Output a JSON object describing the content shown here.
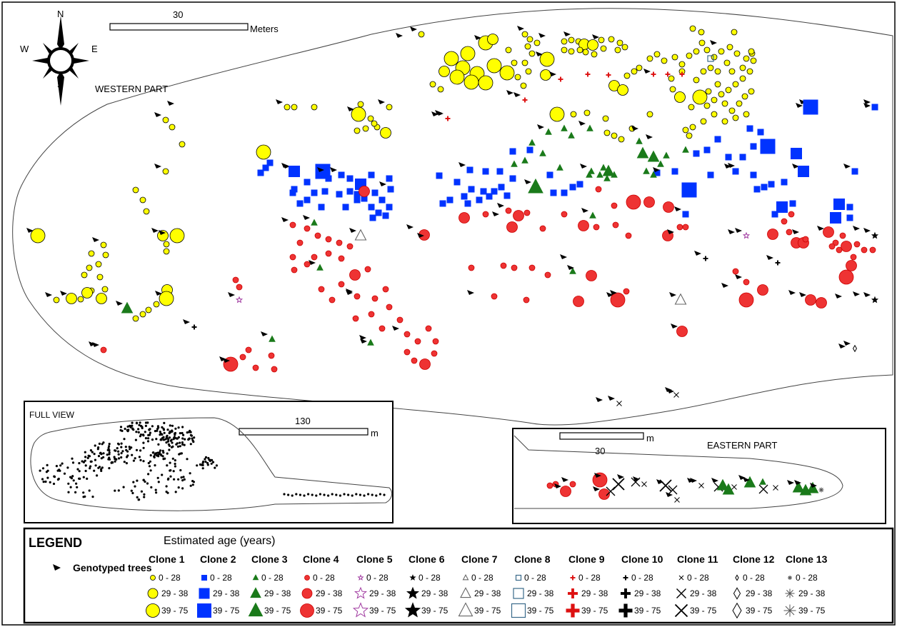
{
  "compass": {
    "n": "N",
    "s": "S",
    "e": "E",
    "w": "W"
  },
  "main_map": {
    "scale_value": "30",
    "scale_unit": "Meters",
    "part_label": "WESTERN PART"
  },
  "full_view": {
    "title": "FULL VIEW",
    "scale_value": "130",
    "scale_unit": "m"
  },
  "eastern_part": {
    "title": "EASTERN PART",
    "scale_value": "30",
    "scale_unit": "m"
  },
  "legend": {
    "title": "LEGEND",
    "subtitle": "Estimated age (years)",
    "genotyped_label": "Genotyped trees",
    "age_classes": [
      "0 - 28",
      "29 - 38",
      "39 - 75"
    ],
    "clones": [
      {
        "name": "Clone 1",
        "symbol": "circle",
        "color": "#ffff00",
        "stroke": "#000000"
      },
      {
        "name": "Clone 2",
        "symbol": "square",
        "color": "#0033ff",
        "stroke": "#0033ff"
      },
      {
        "name": "Clone 3",
        "symbol": "triangle",
        "color": "#1a7a1a",
        "stroke": "#1a7a1a"
      },
      {
        "name": "Clone 4",
        "symbol": "circle",
        "color": "#ee3333",
        "stroke": "#cc0000"
      },
      {
        "name": "Clone 5",
        "symbol": "star-open",
        "color": "none",
        "stroke": "#a03aa0"
      },
      {
        "name": "Clone 6",
        "symbol": "star",
        "color": "#000000",
        "stroke": "#000000"
      },
      {
        "name": "Clone 7",
        "symbol": "triangle-open",
        "color": "none",
        "stroke": "#666666"
      },
      {
        "name": "Clone 8",
        "symbol": "square-open",
        "color": "none",
        "stroke": "#3a6a8a"
      },
      {
        "name": "Clone 9",
        "symbol": "plus",
        "color": "#dd1111",
        "stroke": "#dd1111"
      },
      {
        "name": "Clone 10",
        "symbol": "plus",
        "color": "#000000",
        "stroke": "#000000"
      },
      {
        "name": "Clone 11",
        "symbol": "x",
        "color": "#000000",
        "stroke": "#000000"
      },
      {
        "name": "Clone 12",
        "symbol": "diamond-open",
        "color": "none",
        "stroke": "#000000"
      },
      {
        "name": "Clone 13",
        "symbol": "asterisk",
        "color": "#555555",
        "stroke": "#555555"
      }
    ]
  }
}
